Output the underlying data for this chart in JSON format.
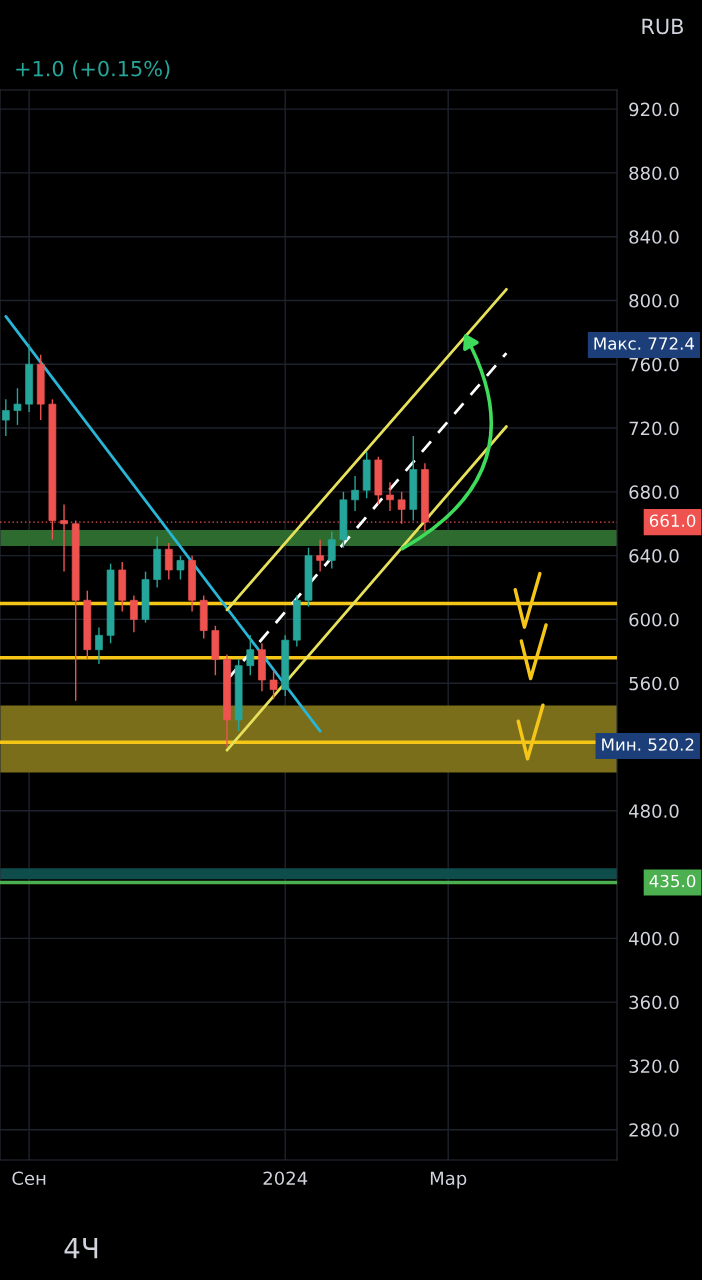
{
  "chart_data": {
    "type": "candlestick",
    "categories": [
      null,
      null,
      "Сен",
      null,
      null,
      null,
      null,
      null,
      null,
      null,
      null,
      null,
      null,
      null,
      null,
      null,
      null,
      null,
      null,
      null,
      null,
      null,
      null,
      null,
      "2024",
      null,
      null,
      null,
      null,
      null,
      null,
      null,
      null,
      null,
      null,
      null,
      null,
      null,
      "Мар",
      null,
      null,
      null,
      null,
      null,
      null,
      null,
      null,
      null,
      null,
      null,
      null,
      null,
      null
    ],
    "ohlc": [
      [
        725,
        738,
        715,
        731
      ],
      [
        731,
        745,
        722,
        735
      ],
      [
        735,
        772.4,
        730,
        760
      ],
      [
        760,
        766,
        725,
        735
      ],
      [
        735,
        738,
        650,
        662
      ],
      [
        662,
        672,
        630,
        660
      ],
      [
        660,
        662,
        549,
        612
      ],
      [
        612,
        618,
        575,
        581
      ],
      [
        581,
        595,
        572,
        590
      ],
      [
        590,
        635,
        585,
        631
      ],
      [
        631,
        636,
        605,
        612
      ],
      [
        612,
        615,
        592,
        600
      ],
      [
        600,
        630,
        598,
        625
      ],
      [
        625,
        652,
        620,
        644
      ],
      [
        644,
        648,
        625,
        631
      ],
      [
        631,
        640,
        625,
        637
      ],
      [
        637,
        640,
        605,
        612
      ],
      [
        612,
        615,
        588,
        593
      ],
      [
        593,
        596,
        565,
        575
      ],
      [
        575,
        578,
        520.2,
        537
      ],
      [
        537,
        575,
        530,
        571
      ],
      [
        571,
        590,
        565,
        581
      ],
      [
        581,
        585,
        555,
        562
      ],
      [
        562,
        568,
        550,
        556
      ],
      [
        556,
        590,
        552,
        587
      ],
      [
        587,
        615,
        583,
        612
      ],
      [
        612,
        645,
        608,
        640
      ],
      [
        640,
        650,
        630,
        637
      ],
      [
        637,
        655,
        632,
        650
      ],
      [
        650,
        680,
        645,
        675
      ],
      [
        675,
        690,
        668,
        681
      ],
      [
        681,
        705,
        676,
        700
      ],
      [
        700,
        702,
        672,
        678
      ],
      [
        678,
        686,
        668,
        675
      ],
      [
        675,
        680,
        660,
        669
      ],
      [
        669,
        715,
        662,
        694
      ],
      [
        694,
        698,
        655,
        661
      ],
      null,
      null,
      null,
      null,
      null,
      null,
      null,
      null,
      null,
      null,
      null,
      null,
      null,
      null,
      null,
      null
    ],
    "colors": [
      "#26a69a",
      "#26a69a",
      "#26a69a",
      "#ef5350",
      "#ef5350",
      "#ef5350",
      "#ef5350",
      "#ef5350",
      "#26a69a",
      "#26a69a",
      "#ef5350",
      "#ef5350",
      "#26a69a",
      "#26a69a",
      "#ef5350",
      "#26a69a",
      "#ef5350",
      "#ef5350",
      "#ef5350",
      "#ef5350",
      "#26a69a",
      "#26a69a",
      "#ef5350",
      "#ef5350",
      "#26a69a",
      "#26a69a",
      "#26a69a",
      "#ef5350",
      "#26a69a",
      "#26a69a",
      "#26a69a",
      "#26a69a",
      "#ef5350",
      "#ef5350",
      "#ef5350",
      "#26a69a",
      "#ef5350",
      null,
      null,
      null,
      null,
      null,
      null,
      null,
      null,
      null,
      null,
      null,
      null,
      null,
      null,
      null,
      null
    ],
    "series": [
      {
        "type": "line",
        "color": "#29b6d6",
        "values": [
          790,
          null,
          null,
          null,
          null,
          null,
          null,
          null,
          null,
          null,
          null,
          null,
          null,
          null,
          null,
          null,
          null,
          null,
          null,
          null,
          null,
          null,
          null,
          null,
          null,
          null,
          null,
          530,
          null,
          null,
          null,
          null,
          null,
          null,
          null,
          null,
          null,
          null,
          null,
          null,
          null,
          null,
          null,
          null,
          null,
          null,
          null,
          null,
          null,
          null,
          null,
          null,
          null
        ]
      },
      {
        "type": "line",
        "color": "#e6e05a",
        "values": [
          null,
          null,
          null,
          null,
          null,
          null,
          null,
          null,
          null,
          null,
          null,
          null,
          null,
          null,
          null,
          null,
          null,
          null,
          null,
          606,
          null,
          null,
          null,
          null,
          null,
          null,
          null,
          null,
          null,
          null,
          null,
          null,
          null,
          null,
          null,
          null,
          null,
          null,
          null,
          null,
          null,
          null,
          null,
          807,
          null,
          null,
          null,
          null,
          null,
          null,
          null,
          null,
          null
        ]
      },
      {
        "type": "line",
        "color": "#e6e05a",
        "values": [
          null,
          null,
          null,
          null,
          null,
          null,
          null,
          null,
          null,
          null,
          null,
          null,
          null,
          null,
          null,
          null,
          null,
          null,
          null,
          518,
          null,
          null,
          null,
          null,
          null,
          null,
          null,
          null,
          null,
          null,
          null,
          null,
          null,
          null,
          null,
          null,
          null,
          null,
          null,
          null,
          null,
          null,
          null,
          721,
          null,
          null,
          null,
          null,
          null,
          null,
          null,
          null,
          null
        ]
      },
      {
        "type": "line",
        "color": "#ffffff",
        "line_style": "dashed",
        "values": [
          null,
          null,
          null,
          null,
          null,
          null,
          null,
          null,
          null,
          null,
          null,
          null,
          null,
          null,
          null,
          null,
          null,
          null,
          null,
          562,
          null,
          null,
          null,
          null,
          null,
          null,
          null,
          null,
          null,
          null,
          null,
          null,
          null,
          null,
          null,
          null,
          null,
          null,
          null,
          null,
          null,
          null,
          null,
          767,
          null,
          null,
          null,
          null,
          null,
          null,
          null,
          null,
          null
        ]
      }
    ],
    "ylim": [
      261,
      932
    ],
    "yticks": [
      {
        "value": 280,
        "label": "280.0"
      },
      {
        "value": 320,
        "label": "320.0"
      },
      {
        "value": 360,
        "label": "360.0"
      },
      {
        "value": 400,
        "label": "400.0"
      },
      {
        "value": 480,
        "label": "480.0"
      },
      {
        "value": 560,
        "label": "560.0"
      },
      {
        "value": 600,
        "label": "600.0"
      },
      {
        "value": 640,
        "label": "640.0"
      },
      {
        "value": 680,
        "label": "680.0"
      },
      {
        "value": 720,
        "label": "720.0"
      },
      {
        "value": 760,
        "label": "760.0"
      },
      {
        "value": 800,
        "label": "800.0"
      },
      {
        "value": 840,
        "label": "840.0"
      },
      {
        "value": 880,
        "label": "880.0"
      },
      {
        "value": 920,
        "label": "920.0"
      }
    ],
    "grid": true,
    "bands": [
      {
        "axis": "y",
        "from": 504,
        "to": 546,
        "color": "#7a6e1a"
      },
      {
        "axis": "y",
        "from": 646,
        "to": 656,
        "color": "#2e6b2e"
      },
      {
        "axis": "y",
        "from": 437,
        "to": 444,
        "color": "#0f4d4d"
      }
    ],
    "ref_lines": [
      {
        "axis": "y",
        "value": 661,
        "label": "661.0",
        "color": "#ef5350",
        "line_style": "dotted"
      },
      {
        "axis": "y",
        "value": 435,
        "label": "435.0",
        "color": "#4caf50",
        "line_style": "solid"
      },
      {
        "axis": "y",
        "value": 610,
        "color": "#f5c518",
        "line_style": "solid"
      },
      {
        "axis": "y",
        "value": 576,
        "color": "#f5c518",
        "line_style": "solid"
      },
      {
        "axis": "y",
        "value": 523,
        "color": "#f5c518",
        "line_style": "solid"
      }
    ],
    "annotations": [
      "+1.0 (+0.15%)",
      "RUB",
      "4Ч",
      "Макс. 772.4",
      "Мин. 520.2"
    ]
  }
}
